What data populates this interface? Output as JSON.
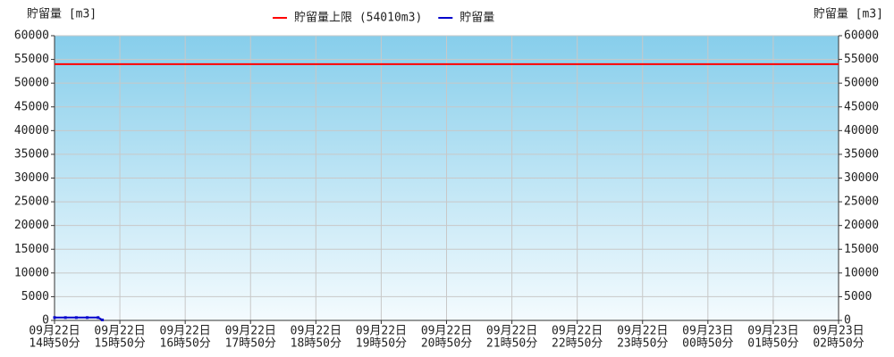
{
  "chart_data": {
    "type": "line",
    "y_label": "貯留量 [m3]",
    "y2_label": "貯留量 [m3]",
    "xlim": [
      0,
      72
    ],
    "xticks": [
      {
        "value": 0,
        "label": [
          "09月22日",
          "14時50分"
        ]
      },
      {
        "value": 6,
        "label": [
          "09月22日",
          "15時50分"
        ]
      },
      {
        "value": 12,
        "label": [
          "09月22日",
          "16時50分"
        ]
      },
      {
        "value": 18,
        "label": [
          "09月22日",
          "17時50分"
        ]
      },
      {
        "value": 24,
        "label": [
          "09月22日",
          "18時50分"
        ]
      },
      {
        "value": 30,
        "label": [
          "09月22日",
          "19時50分"
        ]
      },
      {
        "value": 36,
        "label": [
          "09月22日",
          "20時50分"
        ]
      },
      {
        "value": 42,
        "label": [
          "09月22日",
          "21時50分"
        ]
      },
      {
        "value": 48,
        "label": [
          "09月22日",
          "22時50分"
        ]
      },
      {
        "value": 54,
        "label": [
          "09月22日",
          "23時50分"
        ]
      },
      {
        "value": 60,
        "label": [
          "09月23日",
          "00時50分"
        ]
      },
      {
        "value": 66,
        "label": [
          "09月23日",
          "01時50分"
        ]
      },
      {
        "value": 72,
        "label": [
          "09月23日",
          "02時50分"
        ]
      }
    ],
    "ylim": [
      0,
      60000
    ],
    "yticks": [
      0,
      5000,
      10000,
      15000,
      20000,
      25000,
      30000,
      35000,
      40000,
      45000,
      50000,
      55000,
      60000
    ],
    "y2lim": [
      0,
      60000
    ],
    "y2ticks": [
      0,
      5000,
      10000,
      15000,
      20000,
      25000,
      30000,
      35000,
      40000,
      45000,
      50000,
      55000,
      60000
    ],
    "grid": true,
    "series": [
      {
        "name": "貯留量上限 (54010m3)",
        "color": "#ff0000",
        "x": [
          0,
          72
        ],
        "values": [
          54010,
          54010
        ]
      },
      {
        "name": "貯留量",
        "color": "#0000cc",
        "x": [
          0,
          1,
          2,
          3,
          4,
          4.4
        ],
        "values": [
          600,
          600,
          600,
          600,
          600,
          100
        ]
      }
    ]
  }
}
